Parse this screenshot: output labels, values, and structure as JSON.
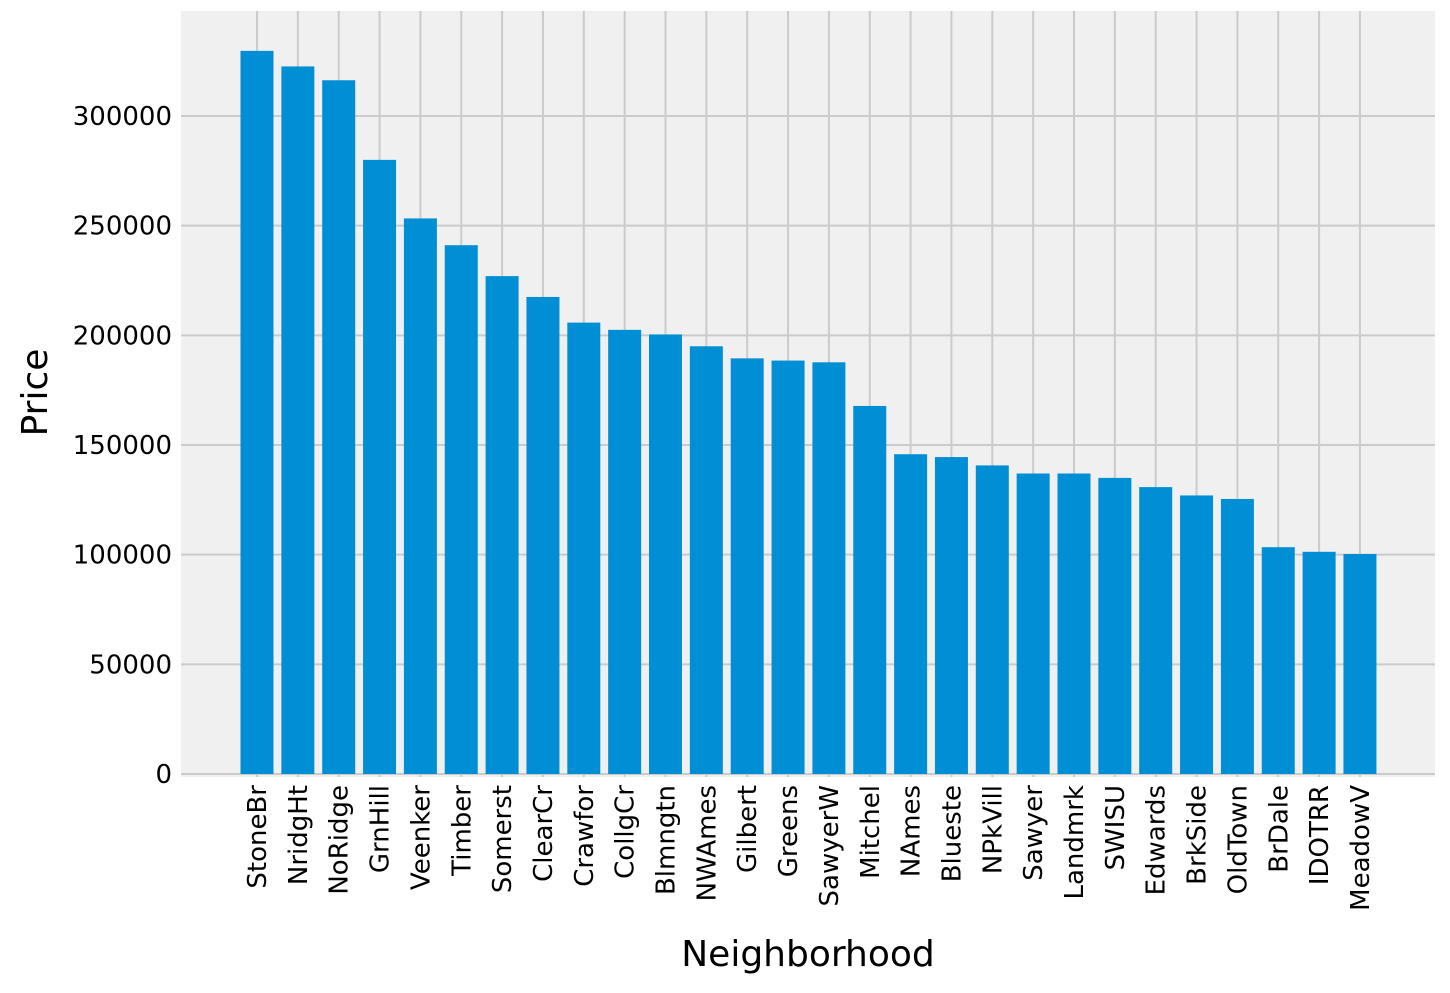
{
  "chart_data": {
    "type": "bar",
    "title": "",
    "xlabel": "Neighborhood",
    "ylabel": "Price",
    "ylim": [
      0,
      335000
    ],
    "yticks": [
      0,
      50000,
      100000,
      150000,
      200000,
      250000,
      300000
    ],
    "ytick_labels": [
      "0",
      "50000",
      "100000",
      "150000",
      "200000",
      "250000",
      "300000"
    ],
    "grid": true,
    "legend": "none",
    "style": "fivethirtyeight",
    "colors": {
      "bar": "#008fd5",
      "plot_background": "#f0f0f0",
      "figure_background": "#ffffff",
      "grid": "#cbcbcb"
    },
    "categories": [
      "StoneBr",
      "NridgHt",
      "NoRidge",
      "GrnHill",
      "Veenker",
      "Timber",
      "Somerst",
      "ClearCr",
      "Crawfor",
      "CollgCr",
      "Blmngtn",
      "NWAmes",
      "Gilbert",
      "Greens",
      "SawyerW",
      "Mitchel",
      "NAmes",
      "Blueste",
      "NPkVill",
      "Sawyer",
      "Landmrk",
      "SWISU",
      "Edwards",
      "BrkSide",
      "OldTown",
      "BrDale",
      "IDOTRR",
      "MeadowV"
    ],
    "values": [
      329700,
      322600,
      316300,
      280000,
      253300,
      241100,
      227000,
      217500,
      205800,
      202500,
      200400,
      195000,
      189500,
      188500,
      187700,
      167800,
      145800,
      144500,
      140700,
      137000,
      137000,
      135000,
      130800,
      127000,
      125400,
      103400,
      101300,
      100300
    ]
  }
}
